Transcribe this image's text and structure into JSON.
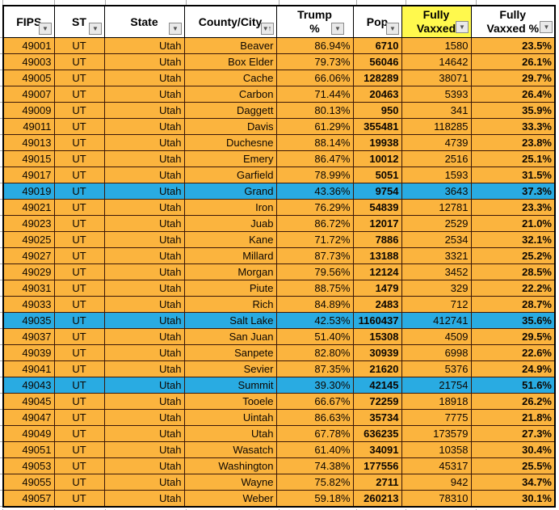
{
  "sheet": {
    "colors": {
      "row_orange": "#fbb43e",
      "row_blue": "#29abe2",
      "header_yellow": "#fff94d"
    },
    "filter_glyph": "▼",
    "sort_glyph": "↑",
    "columns": [
      {
        "id": "fips",
        "label_lines": [
          "FIPS"
        ],
        "align": "right",
        "bold": false,
        "yellow": false,
        "sorted": false
      },
      {
        "id": "st",
        "label_lines": [
          "ST"
        ],
        "align": "center",
        "bold": false,
        "yellow": false,
        "sorted": false
      },
      {
        "id": "state",
        "label_lines": [
          "State"
        ],
        "align": "right",
        "bold": false,
        "yellow": false,
        "sorted": false
      },
      {
        "id": "county",
        "label_lines": [
          "County/City"
        ],
        "align": "right",
        "bold": false,
        "yellow": false,
        "sorted": true
      },
      {
        "id": "trump_pct",
        "label_lines": [
          "Trump",
          "%"
        ],
        "align": "right",
        "bold": false,
        "yellow": false,
        "sorted": false
      },
      {
        "id": "pop",
        "label_lines": [
          "Pop"
        ],
        "align": "right",
        "bold": true,
        "yellow": false,
        "sorted": false
      },
      {
        "id": "fully_vaxxed",
        "label_lines": [
          "Fully",
          "Vaxxed"
        ],
        "align": "right",
        "bold": false,
        "yellow": true,
        "sorted": false
      },
      {
        "id": "fully_vaxxed_pct",
        "label_lines": [
          "Fully",
          "Vaxxed %"
        ],
        "align": "right",
        "bold": true,
        "yellow": false,
        "sorted": false
      }
    ],
    "rows": [
      {
        "highlight": false,
        "cells": [
          "49001",
          "UT",
          "Utah",
          "Beaver",
          "86.94%",
          "6710",
          "1580",
          "23.5%"
        ]
      },
      {
        "highlight": false,
        "cells": [
          "49003",
          "UT",
          "Utah",
          "Box Elder",
          "79.73%",
          "56046",
          "14642",
          "26.1%"
        ]
      },
      {
        "highlight": false,
        "cells": [
          "49005",
          "UT",
          "Utah",
          "Cache",
          "66.06%",
          "128289",
          "38071",
          "29.7%"
        ]
      },
      {
        "highlight": false,
        "cells": [
          "49007",
          "UT",
          "Utah",
          "Carbon",
          "71.44%",
          "20463",
          "5393",
          "26.4%"
        ]
      },
      {
        "highlight": false,
        "cells": [
          "49009",
          "UT",
          "Utah",
          "Daggett",
          "80.13%",
          "950",
          "341",
          "35.9%"
        ]
      },
      {
        "highlight": false,
        "cells": [
          "49011",
          "UT",
          "Utah",
          "Davis",
          "61.29%",
          "355481",
          "118285",
          "33.3%"
        ]
      },
      {
        "highlight": false,
        "cells": [
          "49013",
          "UT",
          "Utah",
          "Duchesne",
          "88.14%",
          "19938",
          "4739",
          "23.8%"
        ]
      },
      {
        "highlight": false,
        "cells": [
          "49015",
          "UT",
          "Utah",
          "Emery",
          "86.47%",
          "10012",
          "2516",
          "25.1%"
        ]
      },
      {
        "highlight": false,
        "cells": [
          "49017",
          "UT",
          "Utah",
          "Garfield",
          "78.99%",
          "5051",
          "1593",
          "31.5%"
        ]
      },
      {
        "highlight": true,
        "cells": [
          "49019",
          "UT",
          "Utah",
          "Grand",
          "43.36%",
          "9754",
          "3643",
          "37.3%"
        ]
      },
      {
        "highlight": false,
        "cells": [
          "49021",
          "UT",
          "Utah",
          "Iron",
          "76.29%",
          "54839",
          "12781",
          "23.3%"
        ]
      },
      {
        "highlight": false,
        "cells": [
          "49023",
          "UT",
          "Utah",
          "Juab",
          "86.72%",
          "12017",
          "2529",
          "21.0%"
        ]
      },
      {
        "highlight": false,
        "cells": [
          "49025",
          "UT",
          "Utah",
          "Kane",
          "71.72%",
          "7886",
          "2534",
          "32.1%"
        ]
      },
      {
        "highlight": false,
        "cells": [
          "49027",
          "UT",
          "Utah",
          "Millard",
          "87.73%",
          "13188",
          "3321",
          "25.2%"
        ]
      },
      {
        "highlight": false,
        "cells": [
          "49029",
          "UT",
          "Utah",
          "Morgan",
          "79.56%",
          "12124",
          "3452",
          "28.5%"
        ]
      },
      {
        "highlight": false,
        "cells": [
          "49031",
          "UT",
          "Utah",
          "Piute",
          "88.75%",
          "1479",
          "329",
          "22.2%"
        ]
      },
      {
        "highlight": false,
        "cells": [
          "49033",
          "UT",
          "Utah",
          "Rich",
          "84.89%",
          "2483",
          "712",
          "28.7%"
        ]
      },
      {
        "highlight": true,
        "cells": [
          "49035",
          "UT",
          "Utah",
          "Salt Lake",
          "42.53%",
          "1160437",
          "412741",
          "35.6%"
        ]
      },
      {
        "highlight": false,
        "cells": [
          "49037",
          "UT",
          "Utah",
          "San Juan",
          "51.40%",
          "15308",
          "4509",
          "29.5%"
        ]
      },
      {
        "highlight": false,
        "cells": [
          "49039",
          "UT",
          "Utah",
          "Sanpete",
          "82.80%",
          "30939",
          "6998",
          "22.6%"
        ]
      },
      {
        "highlight": false,
        "cells": [
          "49041",
          "UT",
          "Utah",
          "Sevier",
          "87.35%",
          "21620",
          "5376",
          "24.9%"
        ]
      },
      {
        "highlight": true,
        "cells": [
          "49043",
          "UT",
          "Utah",
          "Summit",
          "39.30%",
          "42145",
          "21754",
          "51.6%"
        ]
      },
      {
        "highlight": false,
        "cells": [
          "49045",
          "UT",
          "Utah",
          "Tooele",
          "66.67%",
          "72259",
          "18918",
          "26.2%"
        ]
      },
      {
        "highlight": false,
        "cells": [
          "49047",
          "UT",
          "Utah",
          "Uintah",
          "86.63%",
          "35734",
          "7775",
          "21.8%"
        ]
      },
      {
        "highlight": false,
        "cells": [
          "49049",
          "UT",
          "Utah",
          "Utah",
          "67.78%",
          "636235",
          "173579",
          "27.3%"
        ]
      },
      {
        "highlight": false,
        "cells": [
          "49051",
          "UT",
          "Utah",
          "Wasatch",
          "61.40%",
          "34091",
          "10358",
          "30.4%"
        ]
      },
      {
        "highlight": false,
        "cells": [
          "49053",
          "UT",
          "Utah",
          "Washington",
          "74.38%",
          "177556",
          "45317",
          "25.5%"
        ]
      },
      {
        "highlight": false,
        "cells": [
          "49055",
          "UT",
          "Utah",
          "Wayne",
          "75.82%",
          "2711",
          "942",
          "34.7%"
        ]
      },
      {
        "highlight": false,
        "cells": [
          "49057",
          "UT",
          "Utah",
          "Weber",
          "59.18%",
          "260213",
          "78310",
          "30.1%"
        ]
      }
    ]
  }
}
